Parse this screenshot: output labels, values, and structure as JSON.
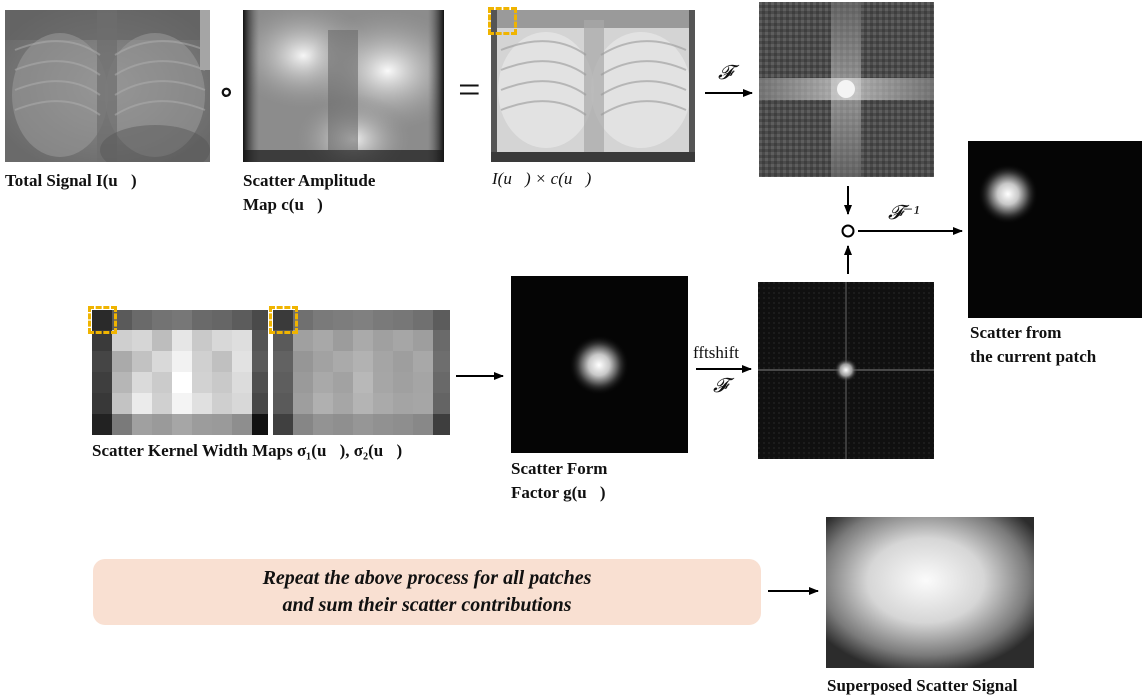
{
  "captions": {
    "total_signal": "Total Signal I(u⃗)",
    "scatter_amp_line1": "Scatter Amplitude",
    "scatter_amp_line2": "Map c(u⃗)",
    "product": "I(u⃗) × c(u⃗)",
    "kernel_maps": "Scatter Kernel Width Maps σ₁(u⃗), σ₂(u⃗)",
    "form_factor_line1": "Scatter Form",
    "form_factor_line2": "Factor g(u⃗)",
    "patch_scatter_line1": "Scatter from",
    "patch_scatter_line2": "the current patch",
    "superposed": "Superposed Scatter Signal"
  },
  "operators": {
    "hadamard": "∘",
    "equals": "=",
    "fourier": "𝓕",
    "inverse_fourier": "𝓕⁻¹",
    "fftshift": "fftshift"
  },
  "banner": {
    "line1": "Repeat the above process for all patches",
    "line2": "and sum their scatter contributions"
  },
  "colors": {
    "patch_highlight": "#f0b400",
    "banner_bg": "#f9e0d2",
    "arrow": "#000000"
  }
}
